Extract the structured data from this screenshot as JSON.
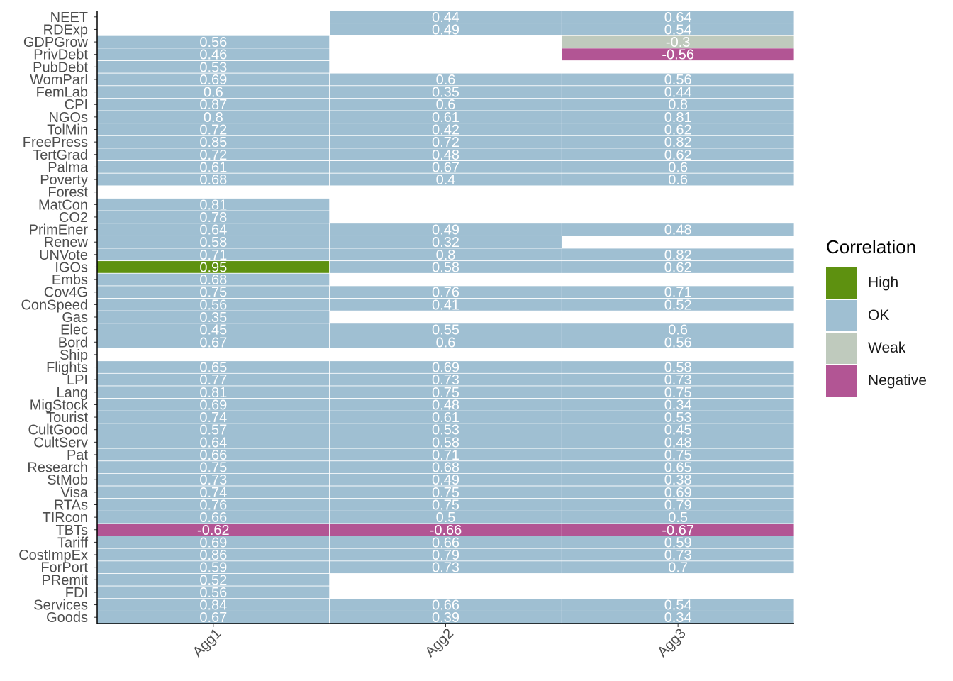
{
  "chart_data": {
    "type": "heatmap",
    "columns": [
      "Agg1",
      "Agg2",
      "Agg3"
    ],
    "rows": [
      {
        "label": "NEET",
        "values": [
          null,
          0.44,
          0.64
        ],
        "classes": [
          null,
          "OK",
          "OK"
        ]
      },
      {
        "label": "RDExp",
        "values": [
          null,
          0.49,
          0.54
        ],
        "classes": [
          null,
          "OK",
          "OK"
        ]
      },
      {
        "label": "GDPGrow",
        "values": [
          0.56,
          null,
          -0.3
        ],
        "classes": [
          "OK",
          null,
          "Weak"
        ]
      },
      {
        "label": "PrivDebt",
        "values": [
          0.46,
          null,
          -0.56
        ],
        "classes": [
          "OK",
          null,
          "Negative"
        ]
      },
      {
        "label": "PubDebt",
        "values": [
          0.53,
          null,
          null
        ],
        "classes": [
          "OK",
          null,
          null
        ]
      },
      {
        "label": "WomParl",
        "values": [
          0.69,
          0.6,
          0.56
        ],
        "classes": [
          "OK",
          "OK",
          "OK"
        ]
      },
      {
        "label": "FemLab",
        "values": [
          0.6,
          0.35,
          0.44
        ],
        "classes": [
          "OK",
          "OK",
          "OK"
        ]
      },
      {
        "label": "CPI",
        "values": [
          0.87,
          0.6,
          0.8
        ],
        "classes": [
          "OK",
          "OK",
          "OK"
        ]
      },
      {
        "label": "NGOs",
        "values": [
          0.8,
          0.61,
          0.81
        ],
        "classes": [
          "OK",
          "OK",
          "OK"
        ]
      },
      {
        "label": "TolMin",
        "values": [
          0.72,
          0.42,
          0.62
        ],
        "classes": [
          "OK",
          "OK",
          "OK"
        ]
      },
      {
        "label": "FreePress",
        "values": [
          0.85,
          0.72,
          0.82
        ],
        "classes": [
          "OK",
          "OK",
          "OK"
        ]
      },
      {
        "label": "TertGrad",
        "values": [
          0.72,
          0.48,
          0.62
        ],
        "classes": [
          "OK",
          "OK",
          "OK"
        ]
      },
      {
        "label": "Palma",
        "values": [
          0.61,
          0.67,
          0.6
        ],
        "classes": [
          "OK",
          "OK",
          "OK"
        ]
      },
      {
        "label": "Poverty",
        "values": [
          0.68,
          0.4,
          0.6
        ],
        "classes": [
          "OK",
          "OK",
          "OK"
        ]
      },
      {
        "label": "Forest",
        "values": [
          null,
          null,
          null
        ],
        "classes": [
          null,
          null,
          null
        ]
      },
      {
        "label": "MatCon",
        "values": [
          0.81,
          null,
          null
        ],
        "classes": [
          "OK",
          null,
          null
        ]
      },
      {
        "label": "CO2",
        "values": [
          0.78,
          null,
          null
        ],
        "classes": [
          "OK",
          null,
          null
        ]
      },
      {
        "label": "PrimEner",
        "values": [
          0.64,
          0.49,
          0.48
        ],
        "classes": [
          "OK",
          "OK",
          "OK"
        ]
      },
      {
        "label": "Renew",
        "values": [
          0.58,
          0.32,
          null
        ],
        "classes": [
          "OK",
          "OK",
          null
        ]
      },
      {
        "label": "UNVote",
        "values": [
          0.71,
          0.8,
          0.82
        ],
        "classes": [
          "OK",
          "OK",
          "OK"
        ]
      },
      {
        "label": "IGOs",
        "values": [
          0.95,
          0.58,
          0.62
        ],
        "classes": [
          "High",
          "OK",
          "OK"
        ]
      },
      {
        "label": "Embs",
        "values": [
          0.68,
          null,
          null
        ],
        "classes": [
          "OK",
          null,
          null
        ]
      },
      {
        "label": "Cov4G",
        "values": [
          0.75,
          0.76,
          0.71
        ],
        "classes": [
          "OK",
          "OK",
          "OK"
        ]
      },
      {
        "label": "ConSpeed",
        "values": [
          0.56,
          0.41,
          0.52
        ],
        "classes": [
          "OK",
          "OK",
          "OK"
        ]
      },
      {
        "label": "Gas",
        "values": [
          0.35,
          null,
          null
        ],
        "classes": [
          "OK",
          null,
          null
        ]
      },
      {
        "label": "Elec",
        "values": [
          0.45,
          0.55,
          0.6
        ],
        "classes": [
          "OK",
          "OK",
          "OK"
        ]
      },
      {
        "label": "Bord",
        "values": [
          0.67,
          0.6,
          0.56
        ],
        "classes": [
          "OK",
          "OK",
          "OK"
        ]
      },
      {
        "label": "Ship",
        "values": [
          null,
          null,
          null
        ],
        "classes": [
          null,
          null,
          null
        ]
      },
      {
        "label": "Flights",
        "values": [
          0.65,
          0.69,
          0.58
        ],
        "classes": [
          "OK",
          "OK",
          "OK"
        ]
      },
      {
        "label": "LPI",
        "values": [
          0.77,
          0.73,
          0.73
        ],
        "classes": [
          "OK",
          "OK",
          "OK"
        ]
      },
      {
        "label": "Lang",
        "values": [
          0.81,
          0.75,
          0.75
        ],
        "classes": [
          "OK",
          "OK",
          "OK"
        ]
      },
      {
        "label": "MigStock",
        "values": [
          0.69,
          0.48,
          0.34
        ],
        "classes": [
          "OK",
          "OK",
          "OK"
        ]
      },
      {
        "label": "Tourist",
        "values": [
          0.74,
          0.61,
          0.53
        ],
        "classes": [
          "OK",
          "OK",
          "OK"
        ]
      },
      {
        "label": "CultGood",
        "values": [
          0.57,
          0.53,
          0.45
        ],
        "classes": [
          "OK",
          "OK",
          "OK"
        ]
      },
      {
        "label": "CultServ",
        "values": [
          0.64,
          0.58,
          0.48
        ],
        "classes": [
          "OK",
          "OK",
          "OK"
        ]
      },
      {
        "label": "Pat",
        "values": [
          0.66,
          0.71,
          0.75
        ],
        "classes": [
          "OK",
          "OK",
          "OK"
        ]
      },
      {
        "label": "Research",
        "values": [
          0.75,
          0.68,
          0.65
        ],
        "classes": [
          "OK",
          "OK",
          "OK"
        ]
      },
      {
        "label": "StMob",
        "values": [
          0.73,
          0.49,
          0.38
        ],
        "classes": [
          "OK",
          "OK",
          "OK"
        ]
      },
      {
        "label": "Visa",
        "values": [
          0.74,
          0.75,
          0.69
        ],
        "classes": [
          "OK",
          "OK",
          "OK"
        ]
      },
      {
        "label": "RTAs",
        "values": [
          0.76,
          0.75,
          0.79
        ],
        "classes": [
          "OK",
          "OK",
          "OK"
        ]
      },
      {
        "label": "TIRcon",
        "values": [
          0.66,
          0.5,
          0.5
        ],
        "classes": [
          "OK",
          "OK",
          "OK"
        ]
      },
      {
        "label": "TBTs",
        "values": [
          -0.62,
          -0.66,
          -0.67
        ],
        "classes": [
          "Negative",
          "Negative",
          "Negative"
        ]
      },
      {
        "label": "Tariff",
        "values": [
          0.69,
          0.66,
          0.59
        ],
        "classes": [
          "OK",
          "OK",
          "OK"
        ]
      },
      {
        "label": "CostImpEx",
        "values": [
          0.86,
          0.79,
          0.73
        ],
        "classes": [
          "OK",
          "OK",
          "OK"
        ]
      },
      {
        "label": "ForPort",
        "values": [
          0.59,
          0.73,
          0.7
        ],
        "classes": [
          "OK",
          "OK",
          "OK"
        ]
      },
      {
        "label": "PRemit",
        "values": [
          0.52,
          null,
          null
        ],
        "classes": [
          "OK",
          null,
          null
        ]
      },
      {
        "label": "FDI",
        "values": [
          0.56,
          null,
          null
        ],
        "classes": [
          "OK",
          null,
          null
        ]
      },
      {
        "label": "Services",
        "values": [
          0.84,
          0.66,
          0.54
        ],
        "classes": [
          "OK",
          "OK",
          "OK"
        ]
      },
      {
        "label": "Goods",
        "values": [
          0.67,
          0.39,
          0.34
        ],
        "classes": [
          "OK",
          "OK",
          "OK"
        ]
      }
    ],
    "legend": {
      "title": "Correlation",
      "position": "right",
      "items": [
        {
          "label": "High",
          "color": "#5e9110"
        },
        {
          "label": "OK",
          "color": "#9fbfd2"
        },
        {
          "label": "Weak",
          "color": "#bfcabd"
        },
        {
          "label": "Negative",
          "color": "#b25594"
        }
      ]
    },
    "grid": false
  }
}
